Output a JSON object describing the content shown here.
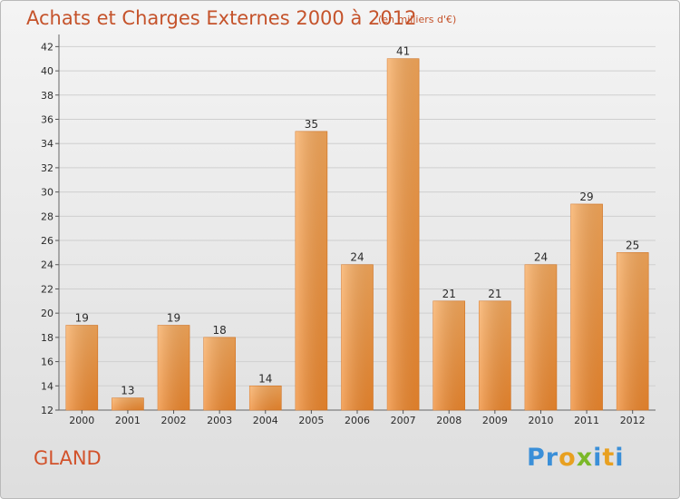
{
  "header": {
    "title": "Achats et Charges Externes 2000 à 2012",
    "subtitle": "(en milliers d'€)"
  },
  "footer": {
    "town": "GLAND",
    "logo_letters": [
      "P",
      "r",
      "o",
      "x",
      "i",
      "t",
      "i"
    ],
    "logo_colors": [
      "#3a8fd8",
      "#3a8fd8",
      "#e8a020",
      "#7ab828",
      "#3a8fd8",
      "#e8a020",
      "#3a8fd8"
    ]
  },
  "chart_data": {
    "type": "bar",
    "title": "Achats et Charges Externes 2000 à 2012",
    "subtitle": "(en milliers d'€)",
    "categories": [
      "2000",
      "2001",
      "2002",
      "2003",
      "2004",
      "2005",
      "2006",
      "2007",
      "2008",
      "2009",
      "2010",
      "2011",
      "2012"
    ],
    "values": [
      19,
      13,
      19,
      18,
      14,
      35,
      24,
      41,
      21,
      21,
      24,
      29,
      25
    ],
    "ylim": [
      12,
      43
    ],
    "yticks": [
      12,
      14,
      16,
      18,
      20,
      22,
      24,
      26,
      28,
      30,
      32,
      34,
      36,
      38,
      40,
      42
    ],
    "grid": true,
    "bar_color": "#f0892e",
    "bar_color_light": "#f8aa5c"
  }
}
